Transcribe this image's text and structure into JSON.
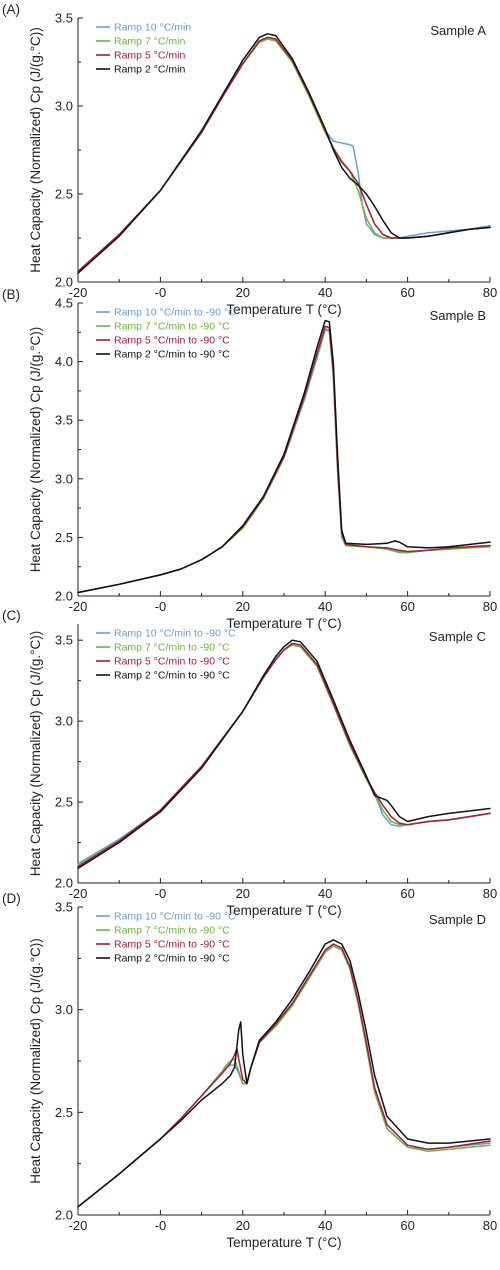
{
  "chart_data": [
    {
      "type": "line",
      "panel_label": "(A)",
      "sample_label": "Sample A",
      "xlabel": "Temperature T (°C)",
      "ylabel": "Heat Capacity (Normalized) Cp (J/(g.°C))",
      "xlim": [
        -20,
        80
      ],
      "ylim": [
        2.0,
        3.5
      ],
      "xticks": [
        -20,
        0,
        20,
        40,
        60,
        80
      ],
      "xtick_labels": [
        "-20",
        "-0",
        "20",
        "40",
        "60",
        "80"
      ],
      "yticks": [
        2.0,
        2.5,
        3.0,
        3.5
      ],
      "ytick_labels": [
        "2.0",
        "2.5",
        "3.0",
        "3.5"
      ],
      "grid": false,
      "legend_position": "top-left",
      "series": [
        {
          "name": "Ramp 10 °C/min",
          "color": "#6b9ed0",
          "x": [
            -20,
            -10,
            0,
            10,
            15,
            20,
            24,
            26,
            28,
            32,
            36,
            40,
            42,
            44,
            46,
            46.8,
            48,
            49,
            50,
            52,
            54,
            56,
            58,
            60,
            65,
            70,
            75,
            80
          ],
          "y": [
            2.06,
            2.27,
            2.52,
            2.85,
            3.05,
            3.24,
            3.37,
            3.39,
            3.38,
            3.26,
            3.07,
            2.86,
            2.8,
            2.79,
            2.78,
            2.77,
            2.62,
            2.44,
            2.33,
            2.27,
            2.25,
            2.25,
            2.25,
            2.26,
            2.28,
            2.29,
            2.3,
            2.32
          ]
        },
        {
          "name": "Ramp 7 °C/min",
          "color": "#6eb43f",
          "x": [
            -20,
            -10,
            0,
            10,
            15,
            20,
            24,
            26,
            28,
            32,
            36,
            40,
            42,
            44,
            46,
            48,
            50,
            52,
            54,
            56,
            58,
            60,
            65,
            70,
            75,
            80
          ],
          "y": [
            2.06,
            2.27,
            2.52,
            2.85,
            3.05,
            3.24,
            3.36,
            3.38,
            3.37,
            3.25,
            3.06,
            2.85,
            2.76,
            2.69,
            2.63,
            2.52,
            2.36,
            2.28,
            2.25,
            2.25,
            2.25,
            2.25,
            2.26,
            2.28,
            2.3,
            2.31
          ]
        },
        {
          "name": "Ramp 5 °C/min",
          "color": "#9e1f3d",
          "x": [
            -20,
            -10,
            0,
            10,
            15,
            20,
            24,
            26,
            28,
            32,
            36,
            40,
            42,
            44,
            46,
            48,
            50,
            52,
            54,
            56,
            58,
            60,
            65,
            70,
            75,
            80
          ],
          "y": [
            2.06,
            2.27,
            2.52,
            2.85,
            3.05,
            3.24,
            3.37,
            3.39,
            3.38,
            3.26,
            3.07,
            2.86,
            2.76,
            2.68,
            2.63,
            2.56,
            2.44,
            2.33,
            2.27,
            2.25,
            2.25,
            2.25,
            2.26,
            2.28,
            2.3,
            2.31
          ]
        },
        {
          "name": "Ramp 2 °C/min",
          "color": "#111111",
          "x": [
            -20,
            -10,
            0,
            10,
            15,
            20,
            24,
            26,
            28,
            32,
            36,
            40,
            42,
            44,
            46,
            48,
            50,
            52,
            54,
            56,
            58,
            60,
            65,
            70,
            75,
            80
          ],
          "y": [
            2.05,
            2.26,
            2.52,
            2.86,
            3.06,
            3.26,
            3.39,
            3.41,
            3.4,
            3.27,
            3.08,
            2.87,
            2.75,
            2.65,
            2.59,
            2.55,
            2.5,
            2.43,
            2.35,
            2.28,
            2.25,
            2.25,
            2.26,
            2.28,
            2.3,
            2.31
          ]
        }
      ]
    },
    {
      "type": "line",
      "panel_label": "(B)",
      "sample_label": "Sample B",
      "xlabel": "Temperature T (°C)",
      "ylabel": "Heat Capacity (Normalized) Cp (J/(g.°C))",
      "xlim": [
        -20,
        80
      ],
      "ylim": [
        2.0,
        4.5
      ],
      "xticks": [
        -20,
        0,
        20,
        40,
        60,
        80
      ],
      "xtick_labels": [
        "-20",
        "-0",
        "20",
        "40",
        "60",
        "80"
      ],
      "yticks": [
        2.0,
        2.5,
        3.0,
        3.5,
        4.0,
        4.5
      ],
      "ytick_labels": [
        "2.0",
        "2.5",
        "3.0",
        "3.5",
        "4.0",
        "4.5"
      ],
      "grid": false,
      "legend_position": "top-left",
      "series": [
        {
          "name": "Ramp 10 °C/min to -90 °C",
          "color": "#6b9ed0",
          "x": [
            -20,
            -10,
            0,
            5,
            10,
            15,
            20,
            25,
            30,
            35,
            38,
            40,
            41,
            42,
            43,
            44,
            45,
            50,
            55,
            58,
            60,
            65,
            70,
            80
          ],
          "y": [
            2.03,
            2.1,
            2.18,
            2.23,
            2.31,
            2.42,
            2.58,
            2.83,
            3.18,
            3.68,
            4.03,
            4.27,
            4.26,
            3.85,
            3.05,
            2.5,
            2.43,
            2.42,
            2.4,
            2.37,
            2.37,
            2.39,
            2.4,
            2.43
          ]
        },
        {
          "name": "Ramp 7 °C/min to -90 °C",
          "color": "#6eb43f",
          "x": [
            -20,
            -10,
            0,
            5,
            10,
            15,
            20,
            25,
            30,
            35,
            38,
            40,
            41,
            42,
            43,
            44,
            45,
            50,
            55,
            58,
            60,
            65,
            70,
            80
          ],
          "y": [
            2.03,
            2.1,
            2.18,
            2.23,
            2.31,
            2.42,
            2.58,
            2.83,
            3.18,
            3.7,
            4.05,
            4.28,
            4.27,
            3.88,
            3.08,
            2.52,
            2.43,
            2.42,
            2.4,
            2.38,
            2.37,
            2.39,
            2.4,
            2.42
          ]
        },
        {
          "name": "Ramp 5 °C/min to -90 °C",
          "color": "#9e1f3d",
          "x": [
            -20,
            -10,
            0,
            5,
            10,
            15,
            20,
            25,
            30,
            35,
            38,
            40,
            41,
            42,
            43,
            44,
            45,
            50,
            55,
            58,
            60,
            65,
            70,
            80
          ],
          "y": [
            2.03,
            2.1,
            2.18,
            2.23,
            2.31,
            2.42,
            2.59,
            2.84,
            3.19,
            3.71,
            4.07,
            4.3,
            4.29,
            3.92,
            3.12,
            2.54,
            2.44,
            2.42,
            2.41,
            2.39,
            2.38,
            2.39,
            2.41,
            2.43
          ]
        },
        {
          "name": "Ramp 2 °C/min to -90 °C",
          "color": "#111111",
          "x": [
            -20,
            -10,
            0,
            5,
            10,
            15,
            20,
            25,
            30,
            35,
            38,
            40,
            41,
            42,
            43,
            44,
            45,
            50,
            55,
            57,
            58,
            60,
            65,
            70,
            80
          ],
          "y": [
            2.03,
            2.1,
            2.18,
            2.23,
            2.31,
            2.42,
            2.6,
            2.85,
            3.21,
            3.74,
            4.12,
            4.35,
            4.34,
            3.98,
            3.2,
            2.56,
            2.45,
            2.44,
            2.45,
            2.47,
            2.46,
            2.42,
            2.41,
            2.42,
            2.46
          ]
        }
      ]
    },
    {
      "type": "line",
      "panel_label": "(C)",
      "sample_label": "Sample C",
      "xlabel": "Temperature T (°C)",
      "ylabel": "Heat Capacity (Normalized) Cp (J/(g.°C))",
      "xlim": [
        -20,
        80
      ],
      "ylim": [
        2.0,
        3.6
      ],
      "xticks": [
        -20,
        0,
        20,
        40,
        60,
        80
      ],
      "xtick_labels": [
        "-20",
        "-0",
        "20",
        "40",
        "60",
        "80"
      ],
      "yticks": [
        2.0,
        2.5,
        3.0,
        3.5
      ],
      "ytick_labels": [
        "2.0",
        "2.5",
        "3.0",
        "3.5"
      ],
      "grid": false,
      "legend_position": "top-left",
      "series": [
        {
          "name": "Ramp 10 °C/min to -90 °C",
          "color": "#6b9ed0",
          "x": [
            -20,
            -10,
            0,
            10,
            20,
            25,
            28,
            30,
            32,
            34,
            38,
            42,
            46,
            50,
            52,
            54,
            56,
            58,
            60,
            65,
            70,
            80
          ],
          "y": [
            2.12,
            2.27,
            2.45,
            2.72,
            3.06,
            3.27,
            3.38,
            3.44,
            3.47,
            3.46,
            3.34,
            3.1,
            2.85,
            2.64,
            2.55,
            2.42,
            2.36,
            2.35,
            2.36,
            2.38,
            2.39,
            2.43
          ]
        },
        {
          "name": "Ramp 7 °C/min to -90 °C",
          "color": "#6eb43f",
          "x": [
            -20,
            -10,
            0,
            10,
            20,
            25,
            28,
            30,
            32,
            34,
            38,
            42,
            46,
            50,
            52,
            54,
            56,
            58,
            60,
            65,
            70,
            80
          ],
          "y": [
            2.11,
            2.26,
            2.45,
            2.72,
            3.06,
            3.27,
            3.38,
            3.44,
            3.47,
            3.46,
            3.34,
            3.1,
            2.85,
            2.64,
            2.55,
            2.45,
            2.38,
            2.36,
            2.36,
            2.38,
            2.39,
            2.43
          ]
        },
        {
          "name": "Ramp 5 °C/min to -90 °C",
          "color": "#9e1f3d",
          "x": [
            -20,
            -10,
            0,
            10,
            20,
            25,
            28,
            30,
            32,
            34,
            38,
            42,
            46,
            50,
            52,
            54,
            56,
            58,
            60,
            65,
            70,
            80
          ],
          "y": [
            2.1,
            2.26,
            2.45,
            2.72,
            3.06,
            3.27,
            3.38,
            3.44,
            3.48,
            3.47,
            3.35,
            3.11,
            2.86,
            2.65,
            2.56,
            2.48,
            2.41,
            2.37,
            2.36,
            2.38,
            2.39,
            2.43
          ]
        },
        {
          "name": "Ramp 2 °C/min to -90 °C",
          "color": "#111111",
          "x": [
            -20,
            -10,
            0,
            10,
            20,
            25,
            28,
            30,
            32,
            34,
            38,
            42,
            46,
            50,
            52,
            54,
            55,
            56,
            58,
            60,
            65,
            70,
            80
          ],
          "y": [
            2.09,
            2.25,
            2.44,
            2.71,
            3.06,
            3.28,
            3.4,
            3.46,
            3.5,
            3.49,
            3.37,
            3.13,
            2.88,
            2.66,
            2.54,
            2.52,
            2.51,
            2.48,
            2.41,
            2.38,
            2.41,
            2.43,
            2.46
          ]
        }
      ]
    },
    {
      "type": "line",
      "panel_label": "(D)",
      "sample_label": "Sample D",
      "xlabel": "Temperature T (°C)",
      "ylabel": "Heat Capacity (Normalized) Cp (J/(g.°C))",
      "xlim": [
        -20,
        80
      ],
      "ylim": [
        2.0,
        3.5
      ],
      "xticks": [
        -20,
        0,
        20,
        40,
        60,
        80
      ],
      "xtick_labels": [
        "-20",
        "-0",
        "20",
        "40",
        "60",
        "80"
      ],
      "yticks": [
        2.0,
        2.5,
        3.0,
        3.5
      ],
      "ytick_labels": [
        "2.0",
        "2.5",
        "3.0",
        "3.5"
      ],
      "grid": false,
      "legend_position": "top-left",
      "series": [
        {
          "name": "Ramp 10 °C/min to -90 °C",
          "color": "#6b9ed0",
          "x": [
            -20,
            -10,
            0,
            5,
            10,
            15,
            17,
            18,
            19,
            20,
            21,
            22,
            24,
            28,
            32,
            36,
            40,
            42,
            44,
            46,
            48,
            50,
            52,
            55,
            60,
            65,
            70,
            80
          ],
          "y": [
            2.04,
            2.2,
            2.37,
            2.47,
            2.58,
            2.7,
            2.73,
            2.73,
            2.69,
            2.64,
            2.64,
            2.72,
            2.84,
            2.92,
            3.02,
            3.15,
            3.28,
            3.31,
            3.29,
            3.2,
            3.03,
            2.82,
            2.6,
            2.42,
            2.33,
            2.32,
            2.33,
            2.35
          ]
        },
        {
          "name": "Ramp 7 °C/min to -90 °C",
          "color": "#6eb43f",
          "x": [
            -20,
            -10,
            0,
            5,
            10,
            15,
            16,
            17,
            18,
            19,
            20,
            21,
            22,
            24,
            28,
            32,
            36,
            40,
            42,
            44,
            46,
            48,
            50,
            52,
            55,
            60,
            65,
            70,
            80
          ],
          "y": [
            2.04,
            2.2,
            2.37,
            2.47,
            2.58,
            2.7,
            2.73,
            2.75,
            2.76,
            2.7,
            2.64,
            2.64,
            2.72,
            2.84,
            2.92,
            3.02,
            3.15,
            3.28,
            3.31,
            3.29,
            3.2,
            3.03,
            2.82,
            2.6,
            2.42,
            2.33,
            2.31,
            2.32,
            2.34
          ]
        },
        {
          "name": "Ramp 5 °C/min to -90 °C",
          "color": "#9e1f3d",
          "x": [
            -20,
            -10,
            0,
            5,
            10,
            15,
            17,
            18,
            18.6,
            19,
            20,
            21,
            22,
            24,
            28,
            32,
            36,
            40,
            42,
            44,
            46,
            48,
            50,
            52,
            55,
            60,
            65,
            70,
            80
          ],
          "y": [
            2.04,
            2.2,
            2.37,
            2.47,
            2.58,
            2.69,
            2.74,
            2.78,
            2.81,
            2.76,
            2.66,
            2.64,
            2.72,
            2.84,
            2.93,
            3.03,
            3.16,
            3.29,
            3.32,
            3.3,
            3.21,
            3.04,
            2.84,
            2.62,
            2.44,
            2.34,
            2.32,
            2.33,
            2.36
          ]
        },
        {
          "name": "Ramp 2 °C/min to -90 °C",
          "color": "#111111",
          "x": [
            -20,
            -10,
            0,
            5,
            10,
            15,
            17,
            18,
            19,
            19.5,
            20,
            21,
            22,
            24,
            28,
            32,
            36,
            40,
            42,
            44,
            46,
            48,
            50,
            52,
            55,
            60,
            65,
            70,
            80
          ],
          "y": [
            2.04,
            2.2,
            2.37,
            2.46,
            2.56,
            2.64,
            2.68,
            2.72,
            2.9,
            2.94,
            2.78,
            2.64,
            2.72,
            2.85,
            2.94,
            3.05,
            3.18,
            3.32,
            3.34,
            3.32,
            3.24,
            3.08,
            2.89,
            2.68,
            2.48,
            2.37,
            2.35,
            2.35,
            2.37
          ]
        }
      ]
    }
  ]
}
